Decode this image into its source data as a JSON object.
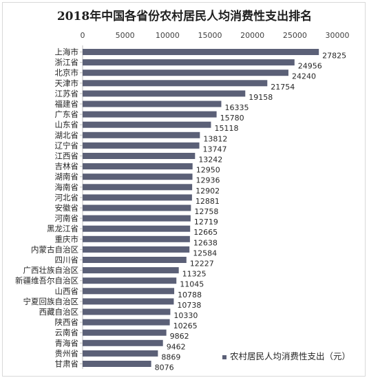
{
  "chart_data": {
    "type": "bar",
    "orientation": "horizontal",
    "title": "2018年中国各省份农村居民人均消费性支出排名",
    "categories": [
      "上海市",
      "浙江省",
      "北京市",
      "天津市",
      "江苏省",
      "福建省",
      "广东省",
      "山东省",
      "湖北省",
      "辽宁省",
      "江西省",
      "吉林省",
      "湖南省",
      "海南省",
      "河北省",
      "安徽省",
      "河南省",
      "黑龙江省",
      "重庆市",
      "内蒙古自治区",
      "四川省",
      "广西壮族自治区",
      "新疆维吾尔自治区",
      "山西省",
      "宁夏回族自治区",
      "西藏自治区",
      "陕西省",
      "云南省",
      "青海省",
      "贵州省",
      "甘肃省"
    ],
    "series": [
      {
        "name": "农村居民人均消费性支出（元）",
        "values": [
          27825,
          24956,
          24240,
          21754,
          19158,
          16335,
          15780,
          15118,
          13812,
          13747,
          13242,
          12950,
          12936,
          12902,
          12881,
          12758,
          12719,
          12665,
          12638,
          12584,
          12227,
          11325,
          11045,
          10788,
          10738,
          10330,
          10265,
          9862,
          9462,
          8869,
          8076
        ]
      }
    ],
    "xlim": [
      0,
      30000
    ],
    "xticks": [
      0,
      5000,
      10000,
      15000,
      20000,
      25000,
      30000
    ],
    "xaxis_position": "top",
    "grid": false,
    "legend_position": "bottom-right",
    "bar_color": "#5b6077"
  }
}
